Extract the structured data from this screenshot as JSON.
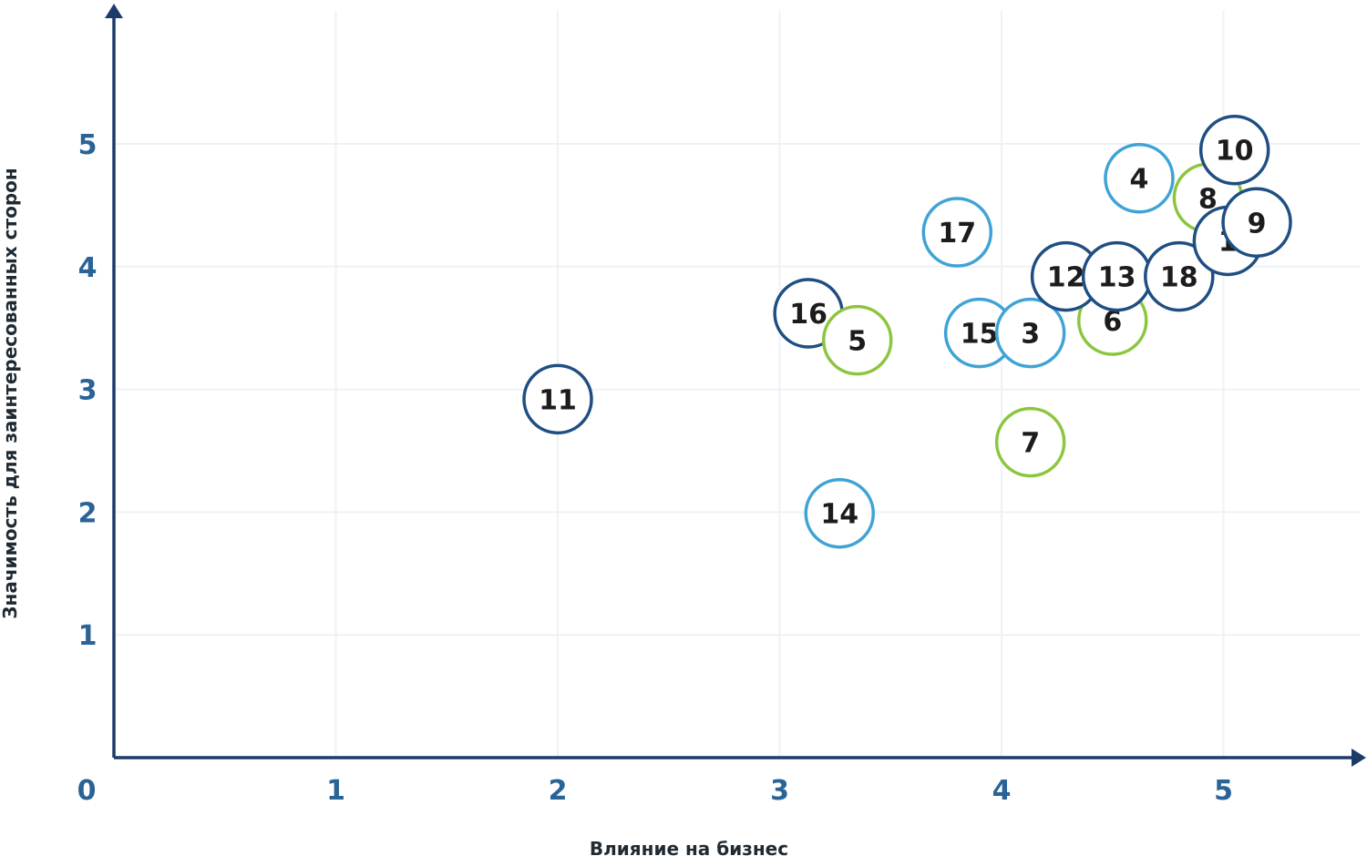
{
  "chart_data": {
    "type": "scatter",
    "title": "",
    "xlabel": "Влияние на бизнес",
    "ylabel": "Значимость для заинтересованных сторон",
    "xlim": [
      0,
      5.9
    ],
    "ylim": [
      0,
      5.1
    ],
    "origin_label": "0",
    "x_ticks": [
      "1",
      "2",
      "3",
      "4",
      "5"
    ],
    "y_ticks": [
      "1",
      "2",
      "3",
      "4",
      "5"
    ],
    "grid": true,
    "colors": {
      "dark_blue": "#1f4e82",
      "light_blue": "#3fa3d6",
      "green": "#8cc63f",
      "axis": "#1b3c6b",
      "tick_text": "#2a6496"
    },
    "points": [
      {
        "label": "11",
        "x": 2.0,
        "y": 2.92,
        "color": "dark_blue"
      },
      {
        "label": "14",
        "x": 3.27,
        "y": 1.99,
        "color": "light_blue"
      },
      {
        "label": "16",
        "x": 3.13,
        "y": 3.62,
        "color": "dark_blue"
      },
      {
        "label": "5",
        "x": 3.35,
        "y": 3.4,
        "color": "green"
      },
      {
        "label": "17",
        "x": 3.8,
        "y": 4.28,
        "color": "light_blue"
      },
      {
        "label": "15",
        "x": 3.9,
        "y": 3.46,
        "color": "light_blue"
      },
      {
        "label": "3",
        "x": 4.13,
        "y": 3.46,
        "color": "light_blue"
      },
      {
        "label": "7",
        "x": 4.13,
        "y": 2.57,
        "color": "green"
      },
      {
        "label": "6",
        "x": 4.5,
        "y": 3.56,
        "color": "green"
      },
      {
        "label": "12",
        "x": 4.29,
        "y": 3.92,
        "color": "dark_blue"
      },
      {
        "label": "13",
        "x": 4.52,
        "y": 3.92,
        "color": "dark_blue"
      },
      {
        "label": "18",
        "x": 4.8,
        "y": 3.92,
        "color": "dark_blue"
      },
      {
        "label": "4",
        "x": 4.62,
        "y": 4.72,
        "color": "light_blue"
      },
      {
        "label": "8",
        "x": 4.93,
        "y": 4.56,
        "color": "green"
      },
      {
        "label": "1",
        "x": 5.02,
        "y": 4.21,
        "color": "dark_blue"
      },
      {
        "label": "9",
        "x": 5.15,
        "y": 4.36,
        "color": "dark_blue"
      },
      {
        "label": "10",
        "x": 5.05,
        "y": 4.95,
        "color": "dark_blue"
      }
    ]
  }
}
